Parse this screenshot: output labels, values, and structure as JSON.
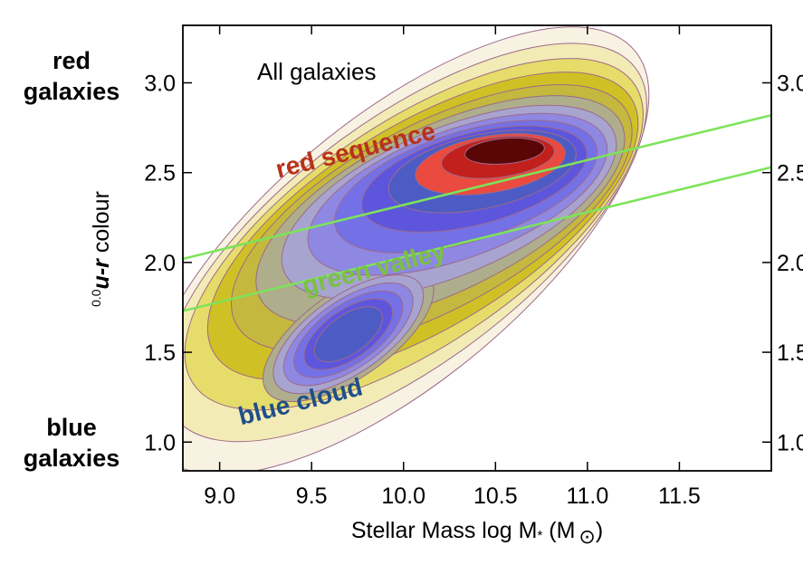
{
  "chart_data": {
    "type": "heatmap",
    "subtype": "density-contour",
    "xlabel": "Stellar Mass log M",
    "xlabel_sub": "*",
    "xlabel_unit": "(M",
    "xlabel_unit_sym": "⊙",
    "xlabel_close": ")",
    "ylabel_prefix": "0.0",
    "ylabel_main": "u-r",
    "ylabel_suffix": " colour",
    "xlim": [
      8.8,
      12.0
    ],
    "ylim": [
      0.84,
      3.32
    ],
    "x_ticks": [
      "9.0",
      "9.5",
      "10.0",
      "10.5",
      "11.0",
      "11.5"
    ],
    "y_ticks": [
      "1.0",
      "1.5",
      "2.0",
      "2.5",
      "3.0"
    ],
    "panel_title": "All galaxies",
    "grid": false,
    "side_labels": {
      "top": [
        "red",
        "galaxies"
      ],
      "bottom": [
        "blue",
        "galaxies"
      ]
    },
    "annotations": [
      {
        "text": "red sequence",
        "x": 9.75,
        "y": 2.58,
        "angle": -14,
        "color": "#b8321b"
      },
      {
        "text": "green valley",
        "x": 9.85,
        "y": 1.92,
        "angle": -14,
        "color": "#79c142"
      },
      {
        "text": "blue cloud",
        "x": 9.45,
        "y": 1.18,
        "angle": -14,
        "color": "#1f4f8a"
      }
    ],
    "lines": [
      {
        "name": "",
        "color": "#7de35a",
        "x": [
          8.8,
          12.0
        ],
        "y": [
          2.02,
          2.82
        ]
      },
      {
        "name": "",
        "color": "#7de35a",
        "x": [
          8.8,
          12.0
        ],
        "y": [
          1.73,
          2.53
        ]
      }
    ],
    "peaks": [
      {
        "region": "red sequence",
        "x": 10.55,
        "y": 2.62
      },
      {
        "region": "blue cloud",
        "x": 9.7,
        "y": 1.6
      }
    ],
    "colors": {
      "levels": [
        "#f8f2e2",
        "#f3ebb6",
        "#e6dc69",
        "#cfc125",
        "#c4b83e",
        "#aeae8c",
        "#a8a4d0",
        "#8e88e3",
        "#7470e6",
        "#5d56dc",
        "#4d5cc4",
        "#ea4a40",
        "#c2201c",
        "#5a0606"
      ],
      "contour_line": "#9c6a8a",
      "fit_line": "#7de35a"
    }
  }
}
